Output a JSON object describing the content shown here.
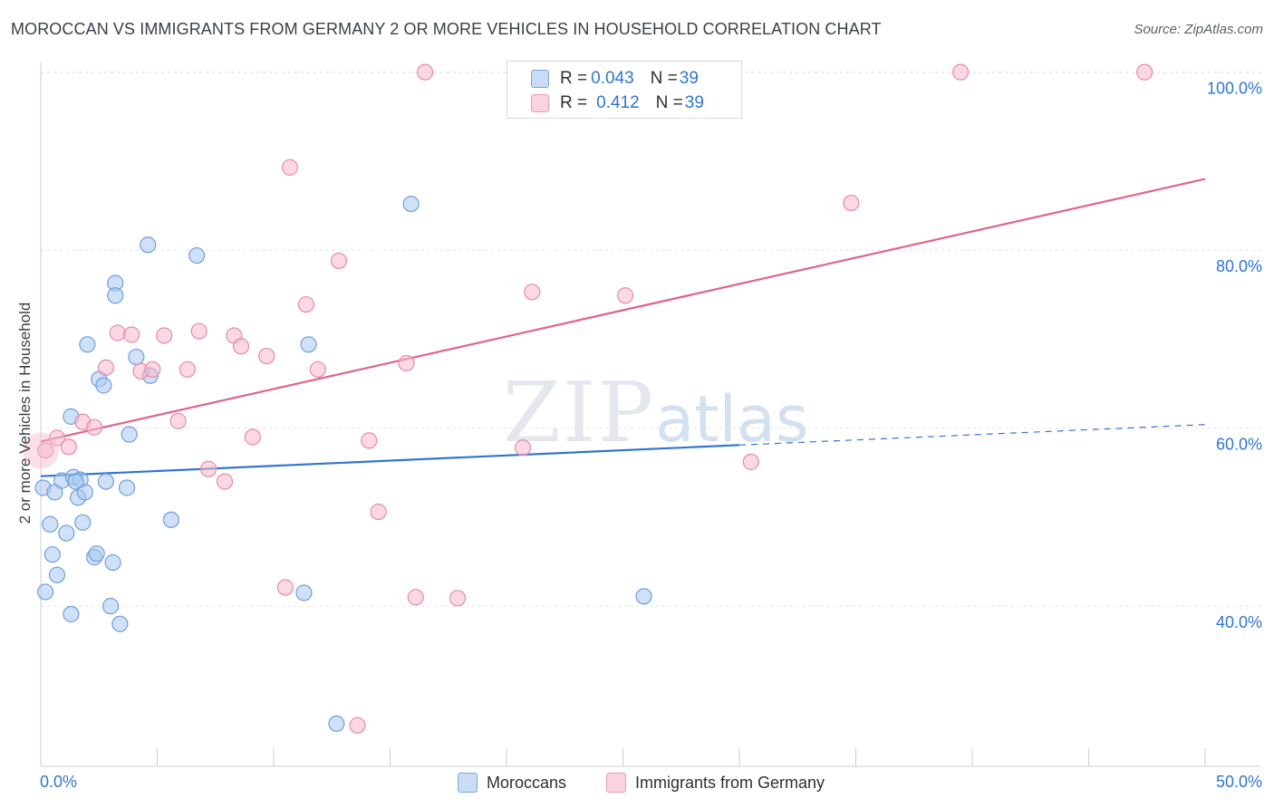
{
  "header": {
    "title": "MOROCCAN VS IMMIGRANTS FROM GERMANY 2 OR MORE VEHICLES IN HOUSEHOLD CORRELATION CHART",
    "source": "Source: ZipAtlas.com"
  },
  "watermark": {
    "zip": "ZIP",
    "atlas": "atlas"
  },
  "legend_box": {
    "rows": [
      {
        "r_label": "R = ",
        "r_value": "0.043",
        "n_label": "N = ",
        "n_value": "39",
        "color": "#a9c8f0"
      },
      {
        "r_label": "R = ",
        "r_value": "0.412",
        "n_label": "N = ",
        "n_value": "39",
        "color": "#f6b9cc"
      }
    ]
  },
  "bottom_legend": [
    {
      "label": "Moroccans",
      "color": "#a9c8f0"
    },
    {
      "label": "Immigrants from Germany",
      "color": "#f6b9cc"
    }
  ],
  "chart_data": {
    "type": "scatter",
    "title": "MOROCCAN VS IMMIGRANTS FROM GERMANY 2 OR MORE VEHICLES IN HOUSEHOLD CORRELATION CHART",
    "xlabel": "",
    "ylabel": "2 or more Vehicles in Household",
    "xlim": [
      0,
      50
    ],
    "ylim": [
      22,
      102
    ],
    "x_tick_labels": [
      "0.0%",
      "50.0%"
    ],
    "y_ticks": [
      40,
      60,
      80,
      100
    ],
    "y_tick_labels": [
      "40.0%",
      "60.0%",
      "80.0%",
      "100.0%"
    ],
    "grid": true,
    "series": [
      {
        "name": "Moroccans",
        "color": "#a9c8f0",
        "stroke": "#6f9fd9",
        "line_color": "#2f76d2",
        "trend": {
          "x0": 0.0,
          "y0": 54.6,
          "x1": 30.0,
          "y1": 58.1,
          "dash_to_x": 50.0,
          "dash_to_y": 60.4
        },
        "points": [
          [
            0.1,
            53.3
          ],
          [
            0.4,
            49.2
          ],
          [
            0.5,
            45.8
          ],
          [
            0.6,
            52.8
          ],
          [
            0.7,
            43.5
          ],
          [
            0.9,
            54.1
          ],
          [
            1.1,
            48.2
          ],
          [
            1.3,
            61.3
          ],
          [
            1.4,
            54.5
          ],
          [
            1.6,
            52.2
          ],
          [
            1.7,
            54.2
          ],
          [
            1.8,
            49.4
          ],
          [
            1.9,
            52.8
          ],
          [
            2.0,
            69.4
          ],
          [
            2.3,
            45.5
          ],
          [
            2.4,
            45.9
          ],
          [
            2.5,
            65.5
          ],
          [
            2.7,
            64.8
          ],
          [
            2.8,
            54.0
          ],
          [
            3.0,
            40.0
          ],
          [
            3.1,
            44.9
          ],
          [
            3.2,
            76.3
          ],
          [
            3.2,
            74.9
          ],
          [
            3.4,
            38.0
          ],
          [
            3.7,
            53.3
          ],
          [
            3.8,
            59.3
          ],
          [
            4.1,
            68.0
          ],
          [
            4.6,
            80.6
          ],
          [
            4.7,
            65.9
          ],
          [
            5.6,
            49.7
          ],
          [
            6.7,
            79.4
          ],
          [
            11.3,
            41.5
          ],
          [
            11.5,
            69.4
          ],
          [
            12.7,
            26.8
          ],
          [
            15.9,
            85.2
          ],
          [
            25.9,
            41.1
          ],
          [
            0.2,
            41.6
          ],
          [
            1.3,
            39.1
          ],
          [
            1.5,
            54.0
          ]
        ]
      },
      {
        "name": "Immigrants from Germany",
        "color": "#f6b9cc",
        "stroke": "#e88aa7",
        "line_color": "#e0648b",
        "trend": {
          "x0": 0.0,
          "y0": 58.5,
          "x1": 50.0,
          "y1": 88.0
        },
        "points": [
          [
            0.2,
            57.5
          ],
          [
            0.7,
            58.9
          ],
          [
            1.2,
            57.9
          ],
          [
            1.8,
            60.7
          ],
          [
            2.3,
            60.1
          ],
          [
            2.8,
            66.8
          ],
          [
            3.3,
            70.7
          ],
          [
            3.9,
            70.5
          ],
          [
            4.3,
            66.4
          ],
          [
            4.8,
            66.6
          ],
          [
            5.3,
            70.4
          ],
          [
            5.9,
            60.8
          ],
          [
            6.3,
            66.6
          ],
          [
            6.8,
            70.9
          ],
          [
            7.2,
            55.4
          ],
          [
            7.9,
            54.0
          ],
          [
            8.3,
            70.4
          ],
          [
            8.6,
            69.2
          ],
          [
            9.1,
            59.0
          ],
          [
            9.7,
            68.1
          ],
          [
            10.5,
            42.1
          ],
          [
            10.7,
            89.3
          ],
          [
            11.4,
            73.9
          ],
          [
            11.9,
            66.6
          ],
          [
            12.8,
            78.8
          ],
          [
            14.1,
            58.6
          ],
          [
            14.5,
            50.6
          ],
          [
            15.7,
            67.3
          ],
          [
            16.1,
            41.0
          ],
          [
            16.5,
            100.0
          ],
          [
            17.9,
            40.9
          ],
          [
            20.7,
            57.8
          ],
          [
            21.1,
            75.3
          ],
          [
            25.1,
            74.9
          ],
          [
            30.5,
            56.2
          ],
          [
            34.8,
            85.3
          ],
          [
            39.5,
            100.0
          ],
          [
            47.4,
            100.0
          ],
          [
            13.6,
            26.6
          ]
        ]
      }
    ]
  }
}
